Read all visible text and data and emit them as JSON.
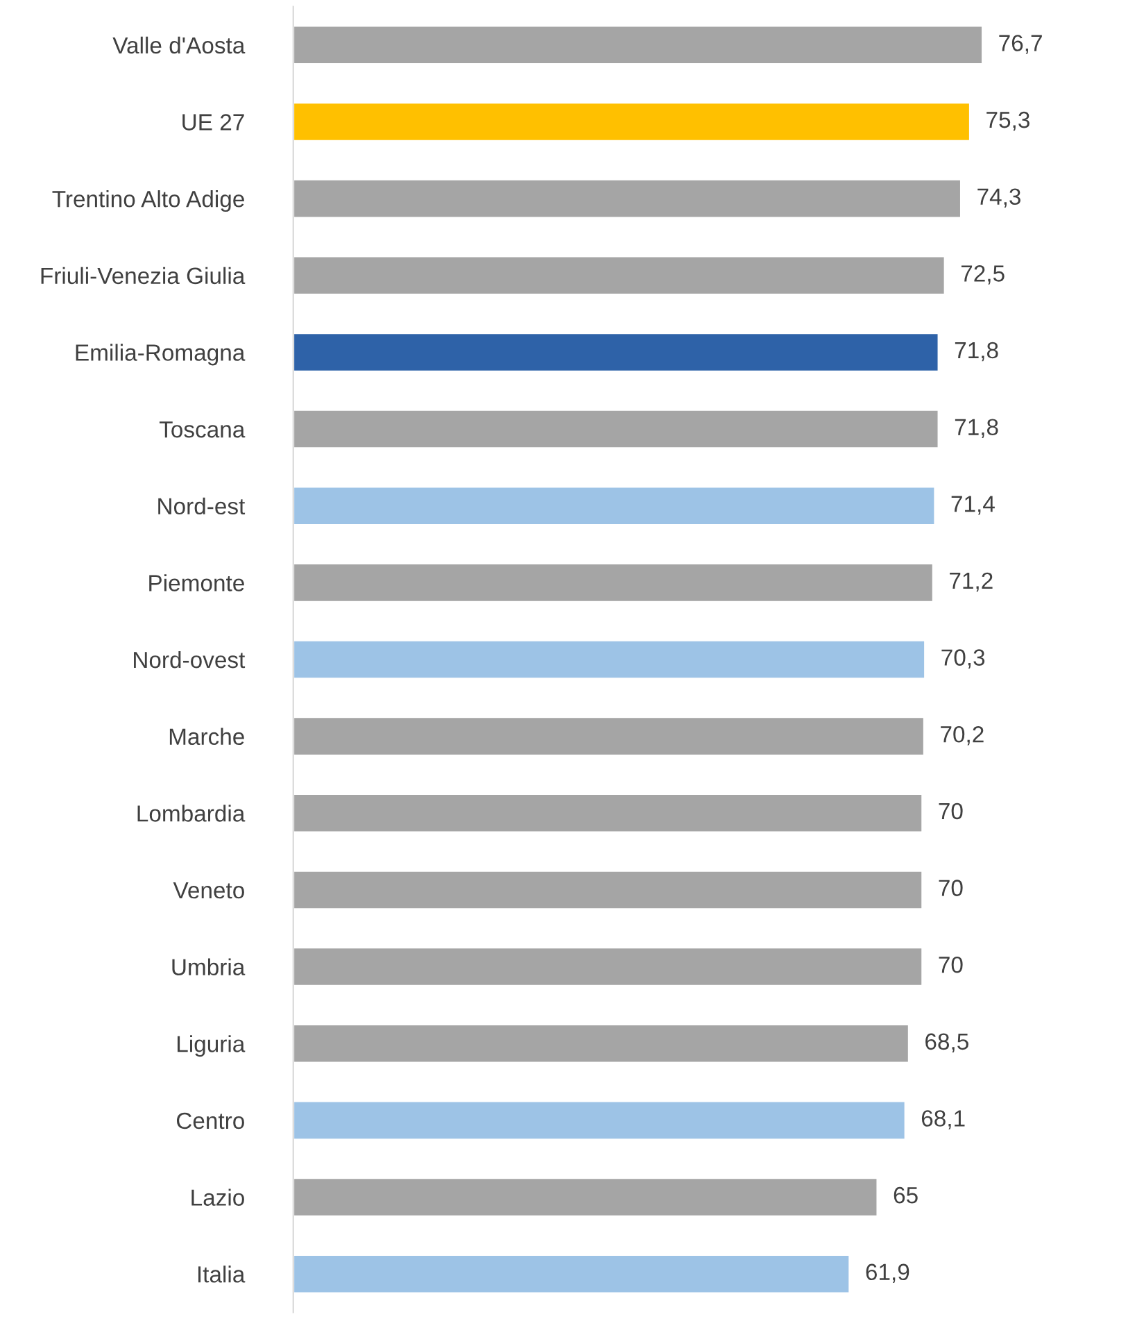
{
  "chart_data": {
    "type": "bar",
    "orientation": "horizontal",
    "categories": [
      "Valle d'Aosta",
      "UE 27",
      "Trentino Alto Adige",
      "Friuli-Venezia Giulia",
      "Emilia-Romagna",
      "Toscana",
      "Nord-est",
      "Piemonte",
      "Nord-ovest",
      "Marche",
      "Lombardia",
      "Veneto",
      "Umbria",
      "Liguria",
      "Centro",
      "Lazio",
      "Italia"
    ],
    "values": [
      76.7,
      75.3,
      74.3,
      72.5,
      71.8,
      71.8,
      71.4,
      71.2,
      70.3,
      70.2,
      70,
      70,
      70,
      68.5,
      68.1,
      65,
      61.9
    ],
    "value_labels": [
      "76,7",
      "75,3",
      "74,3",
      "72,5",
      "71,8",
      "71,8",
      "71,4",
      "71,2",
      "70,3",
      "70,2",
      "70",
      "70",
      "70",
      "68,5",
      "68,1",
      "65",
      "61,9"
    ],
    "colors": [
      "#a5a5a5",
      "#ffc000",
      "#a5a5a5",
      "#a5a5a5",
      "#2e62a8",
      "#a5a5a5",
      "#9dc3e6",
      "#a5a5a5",
      "#9dc3e6",
      "#a5a5a5",
      "#a5a5a5",
      "#a5a5a5",
      "#a5a5a5",
      "#a5a5a5",
      "#9dc3e6",
      "#a5a5a5",
      "#9dc3e6"
    ],
    "grid": false,
    "legend": false
  }
}
